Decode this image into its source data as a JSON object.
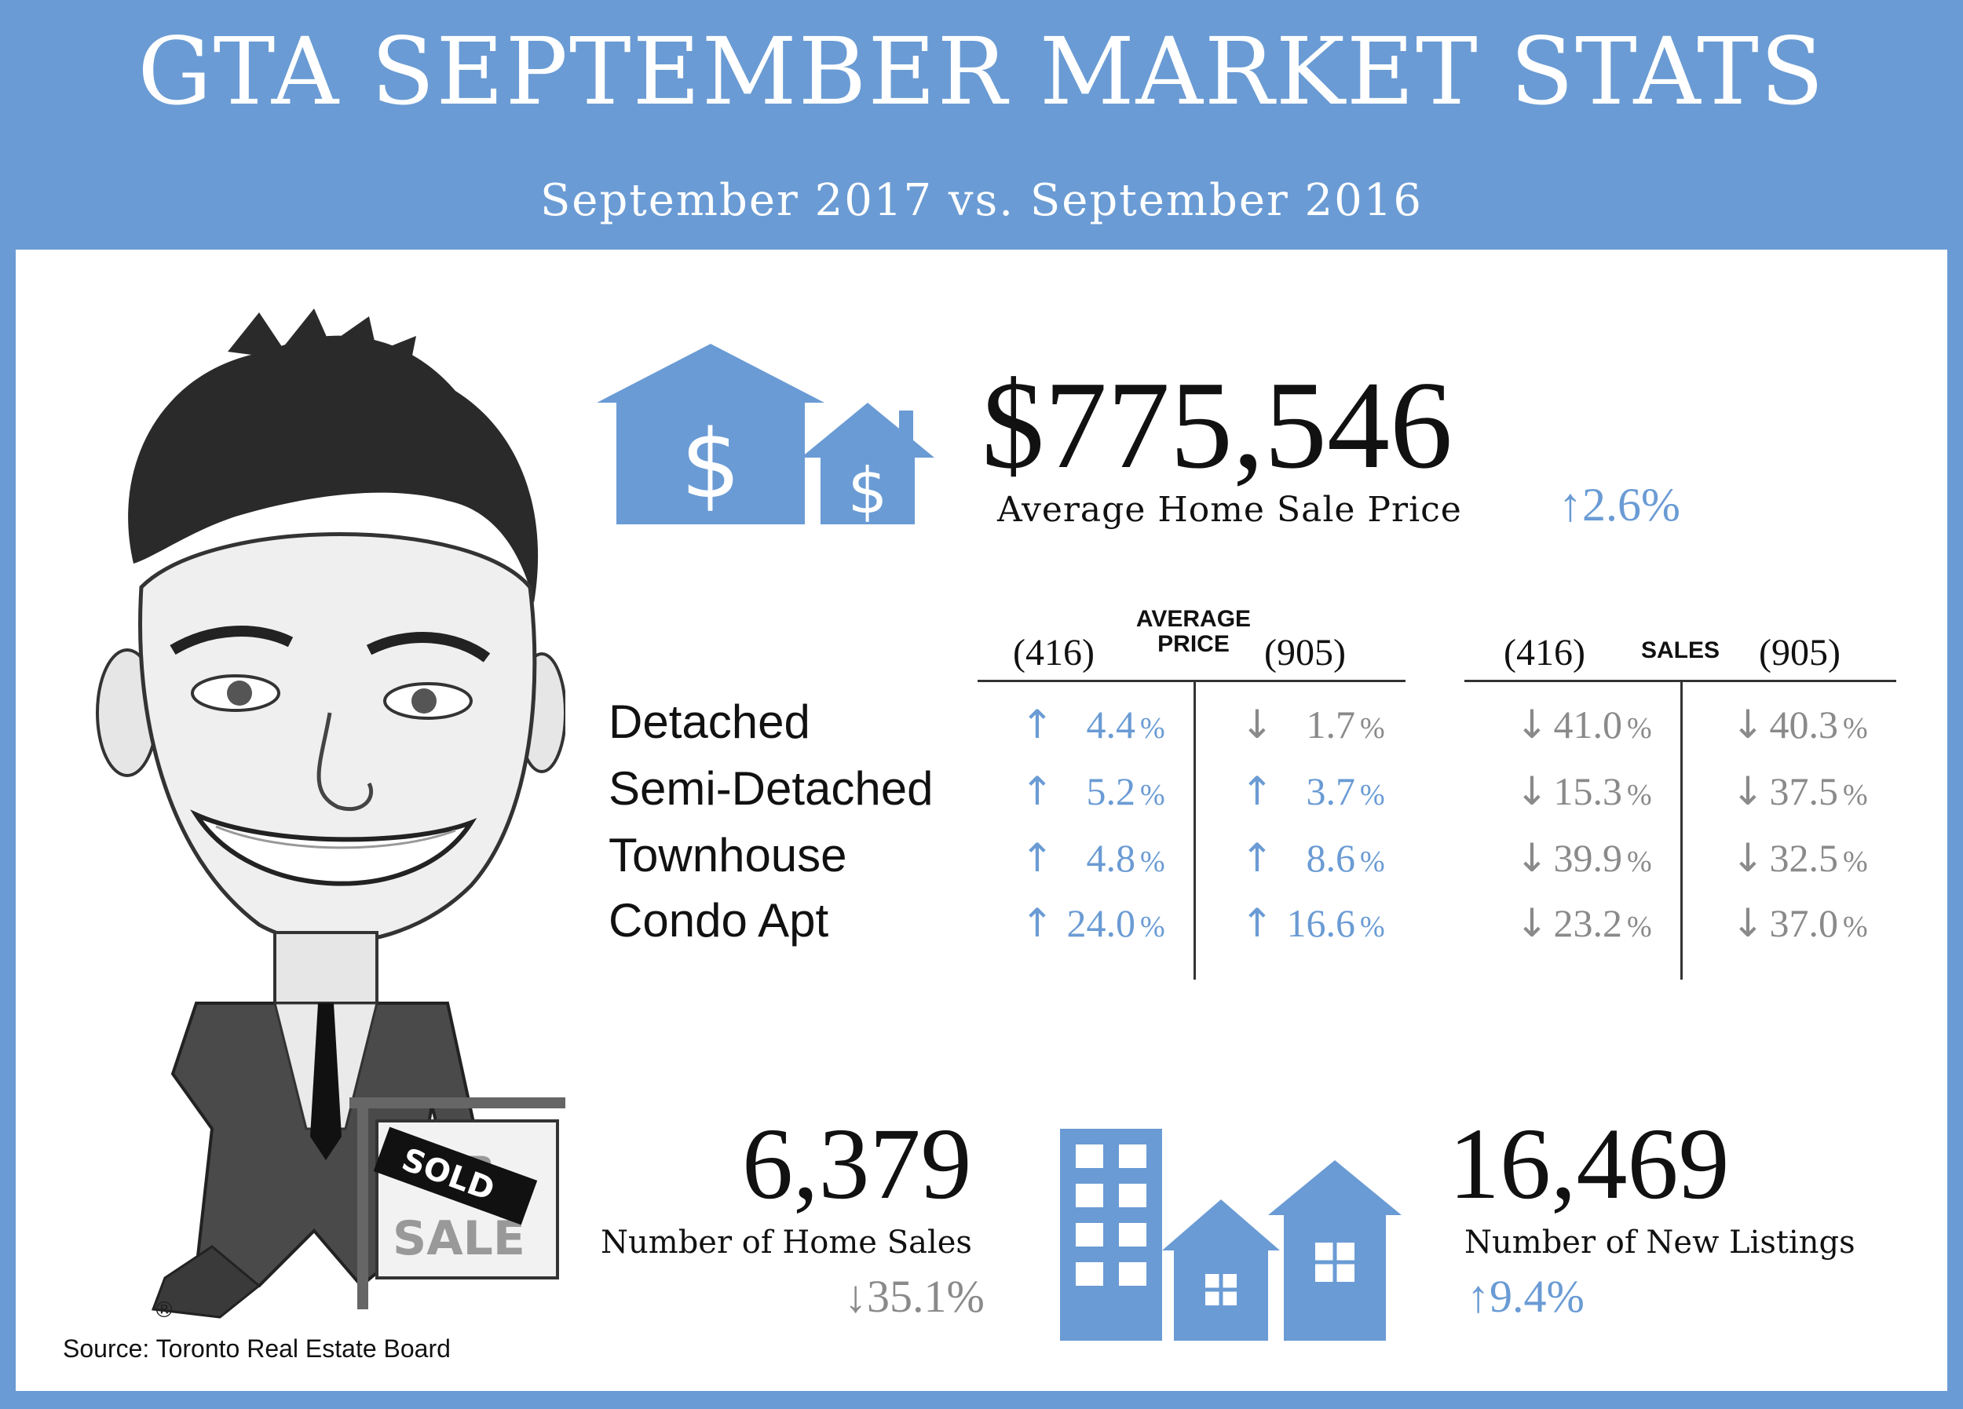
{
  "header": {
    "title": "GTA SEPTEMBER MARKET STATS",
    "subtitle": "September 2017 vs. September 2016"
  },
  "summary": {
    "avg_price": {
      "value": "$775,546",
      "label": "Average Home Sale Price",
      "change_arrow": "↑",
      "change": "2.6%"
    },
    "home_sales": {
      "value": "6,379",
      "label": "Number of Home Sales",
      "change_arrow": "↓",
      "change": "35.1%"
    },
    "new_listings": {
      "value": "16,469",
      "label": "Number of New Listings",
      "change_arrow": "↑",
      "change": "9.4%"
    }
  },
  "table": {
    "price_header": {
      "left": "(416)",
      "center_line1": "AVERAGE",
      "center_line2": "PRICE",
      "right": "(905)"
    },
    "sales_header": {
      "left": "(416)",
      "center": "SALES",
      "right": "(905)"
    },
    "rows": [
      {
        "label": "Detached",
        "price_416": {
          "arrow": "↑",
          "value": "4.4",
          "dir": "up"
        },
        "price_905": {
          "arrow": "↓",
          "value": "1.7",
          "dir": "down"
        },
        "sales_416": {
          "arrow": "↓",
          "value": "41.0",
          "dir": "down"
        },
        "sales_905": {
          "arrow": "↓",
          "value": "40.3",
          "dir": "down"
        }
      },
      {
        "label": "Semi-Detached",
        "price_416": {
          "arrow": "↑",
          "value": "5.2",
          "dir": "up"
        },
        "price_905": {
          "arrow": "↑",
          "value": "3.7",
          "dir": "up"
        },
        "sales_416": {
          "arrow": "↓",
          "value": "15.3",
          "dir": "down"
        },
        "sales_905": {
          "arrow": "↓",
          "value": "37.5",
          "dir": "down"
        }
      },
      {
        "label": "Townhouse",
        "price_416": {
          "arrow": "↑",
          "value": "4.8",
          "dir": "up"
        },
        "price_905": {
          "arrow": "↑",
          "value": "8.6",
          "dir": "up"
        },
        "sales_416": {
          "arrow": "↓",
          "value": "39.9",
          "dir": "down"
        },
        "sales_905": {
          "arrow": "↓",
          "value": "32.5",
          "dir": "down"
        }
      },
      {
        "label": "Condo Apt",
        "price_416": {
          "arrow": "↑",
          "value": "24.0",
          "dir": "up"
        },
        "price_905": {
          "arrow": "↑",
          "value": "16.6",
          "dir": "up"
        },
        "sales_416": {
          "arrow": "↓",
          "value": "23.2",
          "dir": "down"
        },
        "sales_905": {
          "arrow": "↓",
          "value": "37.0",
          "dir": "down"
        }
      }
    ],
    "percent_symbol": "%"
  },
  "colors": {
    "accent": "#6a9bd4",
    "up": "#6a9bd4",
    "down": "#8a8a8a",
    "text": "#111111"
  },
  "footer": {
    "source": "Source: Toronto Real Estate Board"
  }
}
